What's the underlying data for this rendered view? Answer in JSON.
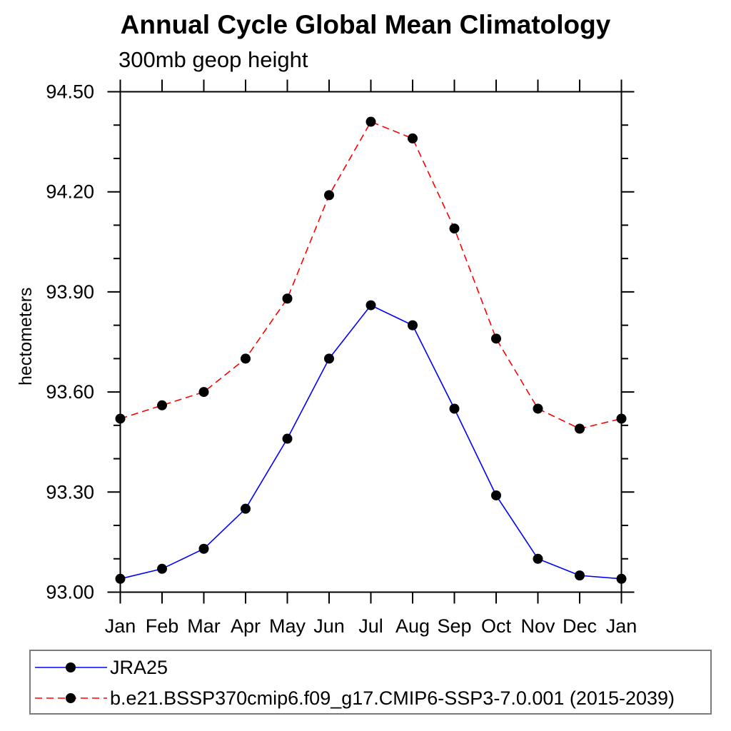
{
  "chart_data": {
    "type": "line",
    "title": "Annual Cycle Global Mean Climatology",
    "subtitle": "300mb geop height",
    "xlabel": "",
    "ylabel": "hectometers",
    "categories": [
      "Jan",
      "Feb",
      "Mar",
      "Apr",
      "May",
      "Jun",
      "Jul",
      "Aug",
      "Sep",
      "Oct",
      "Nov",
      "Dec",
      "Jan"
    ],
    "ylim": [
      93.0,
      94.5
    ],
    "ytick_major_step": 0.3,
    "ytick_minor_step": 0.1,
    "ytick_labels": [
      "93.00",
      "93.30",
      "93.60",
      "93.90",
      "94.20",
      "94.50"
    ],
    "grid": false,
    "legend_position": "bottom box",
    "axis_color": "#000000",
    "legend_border_color": "#7b7b7b",
    "series": [
      {
        "name": "JRA25",
        "color": "#0000ff",
        "line_style": "solid",
        "marker": "circle",
        "marker_color": "#000000",
        "values": [
          93.04,
          93.07,
          93.13,
          93.25,
          93.46,
          93.7,
          93.86,
          93.8,
          93.55,
          93.29,
          93.1,
          93.05,
          93.04
        ]
      },
      {
        "name": "b.e21.BSSP370cmip6.f09_g17.CMIP6-SSP3-7.0.001 (2015-2039)",
        "color": "#ff0000",
        "line_style": "dashed",
        "marker": "circle",
        "marker_color": "#000000",
        "values": [
          93.52,
          93.56,
          93.6,
          93.7,
          93.88,
          94.19,
          94.41,
          94.36,
          94.09,
          93.76,
          93.55,
          93.49,
          93.52
        ]
      }
    ]
  }
}
